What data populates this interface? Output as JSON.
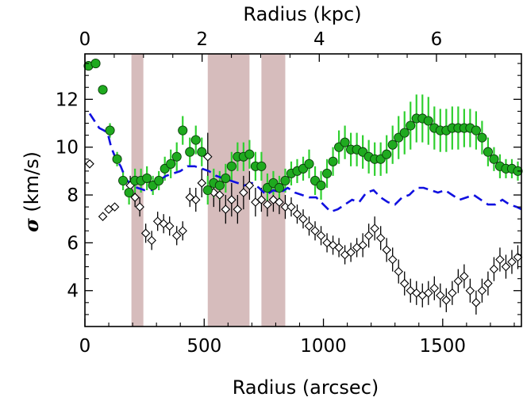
{
  "chart_data": {
    "type": "scatter",
    "xlabel": "Radius (arcsec)",
    "x2label": "Radius (kpc)",
    "ylabel_symbol": "σ",
    "ylabel_text": "(km/s)",
    "xlim": [
      0,
      1830
    ],
    "ylim": [
      2.5,
      13.9
    ],
    "x2lim": [
      0,
      7.45
    ],
    "xticks": [
      0,
      500,
      1000,
      1500
    ],
    "x2ticks": [
      0,
      2,
      4,
      6
    ],
    "yticks": [
      4,
      6,
      8,
      10,
      12
    ],
    "shaded_bands": [
      [
        195,
        245
      ],
      [
        515,
        690
      ],
      [
        740,
        840
      ]
    ],
    "colors": {
      "green": "#1faa1f",
      "green_edge": "#0a3f0a",
      "errorbar_green": "#2fd02f",
      "dashed": "#1010e0",
      "band": "#d6bcbc",
      "black": "#000000"
    },
    "series": [
      {
        "marker": "filled-circle",
        "color": "#1faa1f",
        "x": [
          15,
          45,
          75,
          105,
          135,
          160,
          185,
          210,
          235,
          260,
          285,
          310,
          335,
          360,
          385,
          410,
          440,
          465,
          490,
          515,
          540,
          565,
          590,
          615,
          640,
          665,
          690,
          715,
          740,
          765,
          790,
          815,
          840,
          865,
          890,
          915,
          940,
          965,
          990,
          1015,
          1040,
          1065,
          1090,
          1115,
          1140,
          1165,
          1190,
          1215,
          1240,
          1265,
          1290,
          1315,
          1340,
          1365,
          1390,
          1415,
          1440,
          1465,
          1490,
          1515,
          1540,
          1565,
          1590,
          1615,
          1640,
          1665,
          1690,
          1715,
          1740,
          1765,
          1790,
          1815
        ],
        "y": [
          13.4,
          13.5,
          12.4,
          10.7,
          9.5,
          8.6,
          8.1,
          8.6,
          8.6,
          8.7,
          8.4,
          8.6,
          9.1,
          9.3,
          9.6,
          10.7,
          9.8,
          10.3,
          9.8,
          8.2,
          8.5,
          8.4,
          8.7,
          9.2,
          9.6,
          9.6,
          9.7,
          9.2,
          9.2,
          8.3,
          8.5,
          8.3,
          8.6,
          8.9,
          9.0,
          9.1,
          9.3,
          8.6,
          8.4,
          8.9,
          9.4,
          10.0,
          10.2,
          9.9,
          9.9,
          9.8,
          9.6,
          9.5,
          9.5,
          9.7,
          10.1,
          10.4,
          10.6,
          10.9,
          11.2,
          11.2,
          11.1,
          10.8,
          10.7,
          10.7,
          10.8,
          10.8,
          10.8,
          10.8,
          10.7,
          10.4,
          9.8,
          9.5,
          9.2,
          9.1,
          9.1,
          9.0
        ],
        "yerr": [
          0.0,
          0.0,
          0.0,
          0.3,
          0.3,
          0.4,
          0.5,
          0.5,
          0.5,
          0.5,
          0.4,
          0.4,
          0.5,
          0.6,
          0.6,
          0.6,
          0.6,
          0.6,
          0.6,
          0.6,
          0.6,
          0.6,
          0.6,
          0.6,
          0.6,
          0.6,
          0.6,
          0.6,
          0.6,
          0.6,
          0.5,
          0.5,
          0.5,
          0.5,
          0.5,
          0.5,
          0.6,
          0.6,
          0.6,
          0.6,
          0.6,
          0.7,
          0.7,
          0.7,
          0.7,
          0.7,
          0.7,
          0.7,
          0.7,
          0.8,
          0.8,
          0.9,
          0.9,
          1.0,
          1.0,
          1.0,
          1.0,
          0.9,
          0.9,
          0.9,
          0.9,
          0.9,
          0.8,
          0.8,
          0.8,
          0.7,
          0.6,
          0.5,
          0.5,
          0.4,
          0.4,
          0.4
        ]
      },
      {
        "marker": "open-diamond",
        "color": "#000000",
        "x": [
          20,
          75,
          100,
          125,
          190,
          210,
          230,
          255,
          280,
          305,
          330,
          355,
          385,
          410,
          440,
          465,
          490,
          515,
          540,
          565,
          590,
          615,
          640,
          665,
          690,
          715,
          740,
          765,
          790,
          815,
          840,
          865,
          890,
          915,
          940,
          965,
          990,
          1015,
          1040,
          1065,
          1090,
          1115,
          1140,
          1165,
          1190,
          1215,
          1240,
          1265,
          1290,
          1315,
          1340,
          1365,
          1390,
          1415,
          1440,
          1465,
          1490,
          1515,
          1540,
          1565,
          1590,
          1615,
          1640,
          1665,
          1690,
          1715,
          1740,
          1765,
          1790,
          1815
        ],
        "y": [
          9.3,
          7.1,
          7.4,
          7.5,
          8.4,
          7.9,
          7.5,
          6.4,
          6.1,
          6.9,
          6.8,
          6.7,
          6.3,
          6.5,
          7.9,
          7.8,
          8.5,
          9.6,
          8.1,
          8.0,
          7.4,
          7.8,
          7.4,
          8.1,
          8.4,
          7.7,
          7.8,
          7.6,
          7.8,
          7.7,
          7.5,
          7.5,
          7.2,
          7.0,
          6.7,
          6.5,
          6.3,
          6.0,
          5.9,
          5.8,
          5.5,
          5.6,
          5.8,
          5.9,
          6.3,
          6.6,
          6.2,
          5.7,
          5.3,
          4.8,
          4.3,
          4.0,
          3.9,
          3.8,
          3.9,
          4.1,
          3.8,
          3.6,
          3.9,
          4.4,
          4.6,
          4.0,
          3.5,
          4.0,
          4.3,
          4.9,
          5.3,
          5.0,
          5.2,
          5.4
        ],
        "yerr": [
          0.0,
          0.0,
          0.0,
          0.0,
          0.4,
          0.4,
          0.4,
          0.4,
          0.4,
          0.4,
          0.4,
          0.4,
          0.4,
          0.4,
          0.4,
          0.5,
          0.6,
          1.0,
          0.6,
          0.7,
          0.6,
          0.7,
          0.6,
          0.7,
          0.6,
          0.6,
          0.5,
          0.5,
          0.5,
          0.5,
          0.5,
          0.4,
          0.4,
          0.4,
          0.4,
          0.4,
          0.4,
          0.4,
          0.4,
          0.4,
          0.4,
          0.4,
          0.4,
          0.5,
          0.5,
          0.5,
          0.5,
          0.5,
          0.5,
          0.5,
          0.5,
          0.5,
          0.5,
          0.5,
          0.5,
          0.5,
          0.5,
          0.5,
          0.5,
          0.5,
          0.5,
          0.5,
          0.5,
          0.5,
          0.5,
          0.5,
          0.5,
          0.5,
          0.5,
          0.5
        ]
      },
      {
        "marker": "dashed-line",
        "color": "#1010e0",
        "x": [
          20,
          40,
          60,
          80,
          95,
          110,
          130,
          150,
          170,
          195,
          220,
          250,
          280,
          310,
          340,
          370,
          400,
          430,
          460,
          490,
          520,
          550,
          580,
          610,
          640,
          670,
          700,
          730,
          760,
          790,
          820,
          850,
          880,
          910,
          940,
          970,
          1000,
          1030,
          1060,
          1090,
          1120,
          1150,
          1180,
          1210,
          1240,
          1270,
          1300,
          1330,
          1360,
          1390,
          1420,
          1450,
          1480,
          1510,
          1540,
          1570,
          1600,
          1630,
          1660,
          1690,
          1720,
          1750,
          1780,
          1810,
          1830
        ],
        "y": [
          11.4,
          11.1,
          10.8,
          10.7,
          10.6,
          10.0,
          9.5,
          9.2,
          8.7,
          8.4,
          8.3,
          8.2,
          8.2,
          8.6,
          8.8,
          8.9,
          9.0,
          9.2,
          9.2,
          9.1,
          9.0,
          8.8,
          8.7,
          8.6,
          8.5,
          8.4,
          8.5,
          8.3,
          8.0,
          8.2,
          8.1,
          8.3,
          8.1,
          8.0,
          7.9,
          7.9,
          7.6,
          7.3,
          7.4,
          7.6,
          7.8,
          7.7,
          8.1,
          8.2,
          7.9,
          7.7,
          7.6,
          7.9,
          8.0,
          8.3,
          8.3,
          8.2,
          8.1,
          8.2,
          8.0,
          7.8,
          7.9,
          8.0,
          7.8,
          7.6,
          7.6,
          7.8,
          7.6,
          7.5,
          7.4
        ]
      }
    ]
  }
}
